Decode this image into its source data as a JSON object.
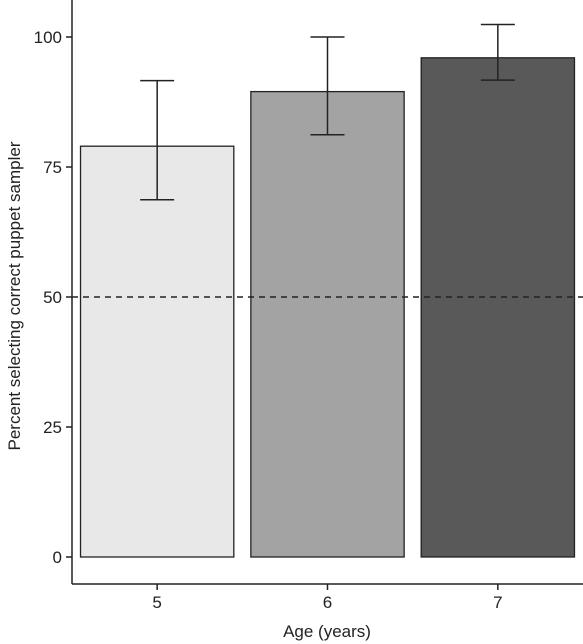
{
  "chart_data": {
    "type": "bar",
    "xlabel": "Age (years)",
    "ylabel": "Percent selecting correct puppet sampler",
    "categories": [
      "5",
      "6",
      "7"
    ],
    "values": [
      79,
      89.5,
      96
    ],
    "error_low": [
      68.7,
      81.2,
      91.7
    ],
    "error_high": [
      91.6,
      100,
      102.4
    ],
    "bar_colors": [
      "#e8e8e8",
      "#a3a3a3",
      "#595959"
    ],
    "ylim": [
      0,
      105
    ],
    "yticks": [
      "0",
      "25",
      "50",
      "75",
      "100"
    ],
    "reference_line": {
      "value": 50,
      "style": "dashed"
    },
    "grid": false
  }
}
